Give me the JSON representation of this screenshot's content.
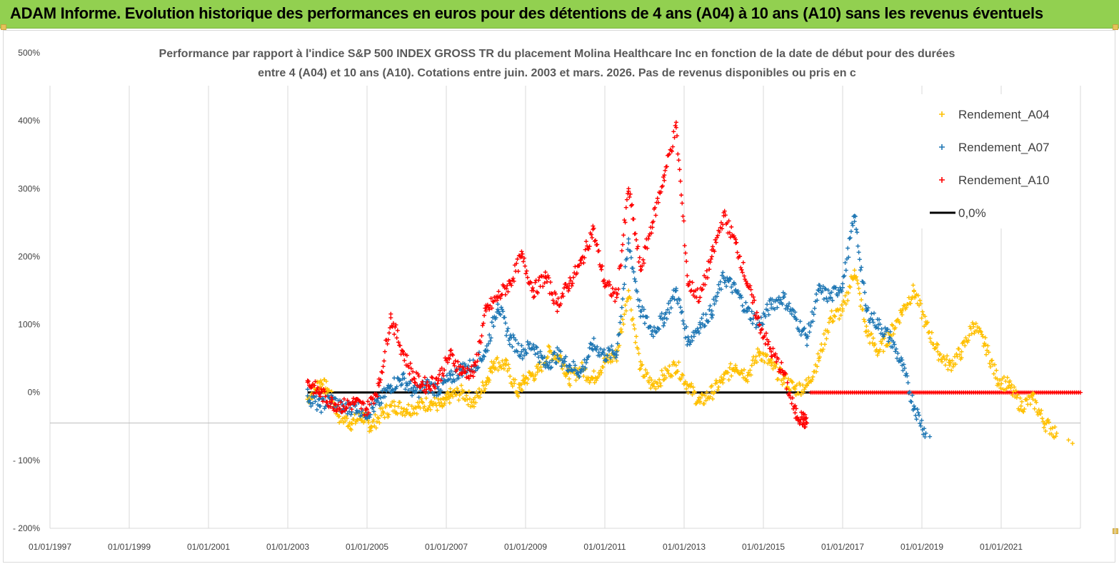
{
  "banner": {
    "title": "ADAM Informe. Evolution historique des performances en euros pour des détentions de 4 ans (A04) à 10 ans (A10) sans les revenus éventuels"
  },
  "colors": {
    "banner_bg": "#92d050",
    "series_a04": "#ffc000",
    "series_a07": "#1f77b4",
    "series_a10": "#ff0000",
    "zero_line": "#000000"
  },
  "chart_data": {
    "type": "scatter",
    "title_lines": [
      "Performance par rapport à l'indice S&P 500 INDEX GROSS TR  du placement Molina Healthcare Inc en fonction de la date de début pour des durées",
      "entre 4 (A04) et 10 ans (A10).  Cotations entre juin. 2003 et mars. 2026. Pas de revenus disponibles ou pris en c"
    ],
    "y_ticks": [
      "500%",
      "400%",
      "300%",
      "200%",
      "100%",
      "0%",
      "- 100%",
      "- 200%"
    ],
    "y_tick_values": [
      500,
      400,
      300,
      200,
      100,
      0,
      -100,
      -200
    ],
    "ylim": [
      -200,
      500
    ],
    "x_ticks": [
      "01/01/1997",
      "01/01/1999",
      "01/01/2001",
      "01/01/2003",
      "01/01/2005",
      "01/01/2007",
      "01/01/2009",
      "01/01/2011",
      "01/01/2013",
      "01/01/2015",
      "01/01/2017",
      "01/01/2019",
      "01/01/2021"
    ],
    "x_tick_years": [
      1997,
      1999,
      2001,
      2003,
      2005,
      2007,
      2009,
      2011,
      2013,
      2015,
      2017,
      2019,
      2021
    ],
    "xlim": [
      1997,
      2023.0
    ],
    "grid": "vertical",
    "legend_placement": "top-right",
    "legend": [
      "Rendement_A04",
      "Rendement_A07",
      "Rendement_A10",
      "0,0%"
    ],
    "zero_line": {
      "label": "0,0%",
      "x": [
        2003.5,
        2016.2
      ],
      "y": 0
    },
    "series": [
      {
        "name": "Rendement_A04",
        "x": [
          2003.5,
          2003.8,
          2004.0,
          2004.3,
          2004.6,
          2004.9,
          2005.1,
          2005.4,
          2005.7,
          2006.0,
          2006.3,
          2006.6,
          2006.9,
          2007.1,
          2007.4,
          2007.7,
          2008.0,
          2008.2,
          2008.5,
          2008.8,
          2009.0,
          2009.3,
          2009.6,
          2009.9,
          2010.1,
          2010.4,
          2010.7,
          2011.0,
          2011.3,
          2011.6,
          2011.9,
          2012.2,
          2012.5,
          2012.8,
          2013.1,
          2013.4,
          2013.7,
          2014.0,
          2014.3,
          2014.6,
          2014.9,
          2015.2,
          2015.5,
          2015.8,
          2016.1,
          2016.4,
          2016.7,
          2017.0,
          2017.3,
          2017.6,
          2017.9,
          2018.2,
          2018.5,
          2018.8,
          2019.1,
          2019.4,
          2019.7,
          2020.0,
          2020.3,
          2020.6,
          2020.9,
          2021.2,
          2021.5,
          2021.8,
          2022.1,
          2022.4
        ],
        "values": [
          -10,
          15,
          5,
          -35,
          -45,
          -35,
          -50,
          -30,
          -20,
          -25,
          -20,
          -15,
          -20,
          -5,
          0,
          -15,
          15,
          45,
          40,
          0,
          20,
          30,
          60,
          50,
          20,
          35,
          20,
          45,
          55,
          150,
          35,
          10,
          25,
          40,
          10,
          -15,
          0,
          20,
          40,
          25,
          60,
          40,
          20,
          5,
          10,
          50,
          110,
          120,
          180,
          90,
          60,
          85,
          120,
          150,
          100,
          60,
          40,
          60,
          100,
          70,
          20,
          10,
          -20,
          -10,
          -45,
          -60
        ],
        "extra_points": {
          "x": [
            2022.7,
            2022.8
          ],
          "values": [
            -70,
            -75
          ]
        }
      },
      {
        "name": "Rendement_A07",
        "x": [
          2003.5,
          2003.8,
          2004.1,
          2004.4,
          2004.7,
          2005.0,
          2005.3,
          2005.6,
          2005.9,
          2006.2,
          2006.5,
          2006.8,
          2007.1,
          2007.4,
          2007.7,
          2008.0,
          2008.3,
          2008.6,
          2008.9,
          2009.2,
          2009.5,
          2009.8,
          2010.1,
          2010.4,
          2010.7,
          2011.0,
          2011.3,
          2011.6,
          2011.9,
          2012.2,
          2012.5,
          2012.8,
          2013.1,
          2013.4,
          2013.7,
          2014.0,
          2014.3,
          2014.6,
          2014.9,
          2015.2,
          2015.5,
          2015.8,
          2016.1,
          2016.4,
          2016.7,
          2017.0,
          2017.3,
          2017.6,
          2017.9,
          2018.2,
          2018.5,
          2018.8,
          2019.1
        ],
        "values": [
          -5,
          -20,
          -10,
          -25,
          -20,
          -30,
          -15,
          10,
          20,
          0,
          10,
          5,
          20,
          35,
          40,
          60,
          130,
          80,
          60,
          70,
          40,
          55,
          40,
          30,
          70,
          55,
          60,
          220,
          120,
          90,
          110,
          150,
          75,
          100,
          120,
          170,
          150,
          120,
          100,
          130,
          140,
          110,
          80,
          150,
          140,
          160,
          260,
          120,
          100,
          80,
          40,
          -20,
          -60
        ],
        "extra_points": {
          "x": [
            2019.2
          ],
          "values": [
            -65
          ]
        }
      },
      {
        "name": "Rendement_A10",
        "x": [
          2003.5,
          2003.8,
          2004.1,
          2004.4,
          2004.7,
          2005.0,
          2005.3,
          2005.6,
          2005.9,
          2006.2,
          2006.5,
          2006.8,
          2007.1,
          2007.4,
          2007.7,
          2008.0,
          2008.3,
          2008.6,
          2008.9,
          2009.2,
          2009.5,
          2009.8,
          2010.1,
          2010.4,
          2010.7,
          2011.0,
          2011.3,
          2011.6,
          2011.9,
          2012.2,
          2012.5,
          2012.8,
          2013.1,
          2013.4,
          2013.7,
          2014.0,
          2014.3,
          2014.6,
          2014.9,
          2015.2,
          2015.5,
          2015.8,
          2016.0,
          2016.1
        ],
        "values": [
          15,
          0,
          -15,
          -20,
          -15,
          -25,
          10,
          110,
          60,
          20,
          10,
          20,
          55,
          30,
          30,
          120,
          140,
          160,
          200,
          150,
          170,
          130,
          160,
          190,
          240,
          160,
          140,
          300,
          180,
          250,
          320,
          390,
          160,
          140,
          200,
          260,
          220,
          160,
          100,
          60,
          30,
          -30,
          -40,
          -45
        ],
        "zero_segment": {
          "x": [
            2016.2,
            2023.0
          ],
          "y": 0
        }
      }
    ]
  }
}
